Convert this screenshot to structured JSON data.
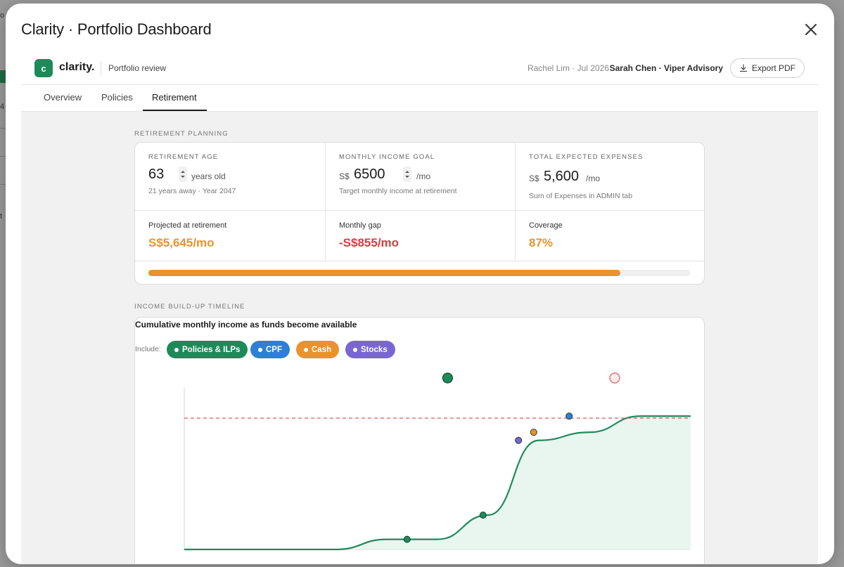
{
  "modal": {
    "title": "Clarity · Portfolio Dashboard"
  },
  "header": {
    "logo_letter": "c",
    "logo_text": "clarity.",
    "subtitle": "Portfolio review",
    "meta_date": "Rachel Lim · Jul 2026",
    "meta_advisor": "Sarah Chen · Viper Advisory",
    "export_label": "Export PDF"
  },
  "tabs": [
    {
      "label": "Overview",
      "active": false
    },
    {
      "label": "Policies",
      "active": false
    },
    {
      "label": "Retirement",
      "active": true
    }
  ],
  "retirement": {
    "section_label": "RETIREMENT PLANNING",
    "age": {
      "label": "RETIREMENT AGE",
      "value": "63",
      "unit": "years old",
      "sub": "21 years away · Year 2047"
    },
    "income_goal": {
      "label": "MONTHLY INCOME GOAL",
      "currency": "S$",
      "value": "6500",
      "unit": "/mo",
      "sub": "Target monthly income at retirement"
    },
    "expenses": {
      "label": "TOTAL EXPECTED EXPENSES",
      "currency": "S$",
      "value": "5,600",
      "unit": "/mo",
      "sub": "Sum of Expenses in ADMIN tab"
    },
    "projected": {
      "label": "Projected at retirement",
      "value": "S$5,645/mo"
    },
    "gap": {
      "label": "Monthly gap",
      "value": "-S$855/mo"
    },
    "coverage": {
      "label": "Coverage",
      "value": "87%",
      "fraction": 0.87
    }
  },
  "timeline": {
    "section_label": "INCOME BUILD-UP TIMELINE",
    "title": "Cumulative monthly income as funds become available",
    "include_label": "Include:",
    "filters": [
      {
        "label": "Policies & ILPs",
        "color": "#1e8a5a",
        "active": true
      },
      {
        "label": "CPF",
        "color": "#2f7fd6",
        "active": true
      },
      {
        "label": "Cash",
        "color": "#ea922d",
        "active": true
      },
      {
        "label": "Stocks",
        "color": "#7a66d1",
        "active": true
      }
    ]
  },
  "colors": {
    "accent_green": "#1e8a5a",
    "line_green": "#1f8a5c",
    "fill_green": "#e9f5ef",
    "orange": "#ea922d",
    "red": "#de3a3f",
    "cpf_blue": "#2f7fd6",
    "stocks_purple": "#7a66d1"
  },
  "chart_data": {
    "type": "line",
    "title": "Cumulative monthly income as funds become available",
    "xlabel": "",
    "ylabel": "",
    "grid": false,
    "legend": "top-left",
    "series": [
      {
        "name": "Cumulative monthly income",
        "x": [
          0,
          1,
          2,
          3,
          4,
          5,
          6,
          7,
          8,
          9,
          10
        ],
        "values": [
          0,
          0,
          0,
          0,
          500,
          500,
          1700,
          5400,
          5800,
          6600,
          6600
        ]
      }
    ],
    "reference_lines": [
      {
        "name": "Target",
        "value": 6500
      }
    ],
    "markers": [
      {
        "category": "Policies & ILPs",
        "x": 4.4,
        "y": 500
      },
      {
        "category": "Policies & ILPs",
        "x": 5.9,
        "y": 1700
      },
      {
        "category": "Stocks",
        "x": 6.6,
        "y": 5400
      },
      {
        "category": "Cash",
        "x": 6.9,
        "y": 5800
      },
      {
        "category": "CPF",
        "x": 7.6,
        "y": 6600
      }
    ],
    "top_markers": [
      {
        "name": "retirement-age",
        "x": 5.2,
        "style": "filled-green"
      },
      {
        "name": "target-reached",
        "x": 8.5,
        "style": "hollow-red"
      }
    ],
    "ylim": [
      0,
      8000
    ],
    "xlim": [
      0,
      10
    ]
  }
}
